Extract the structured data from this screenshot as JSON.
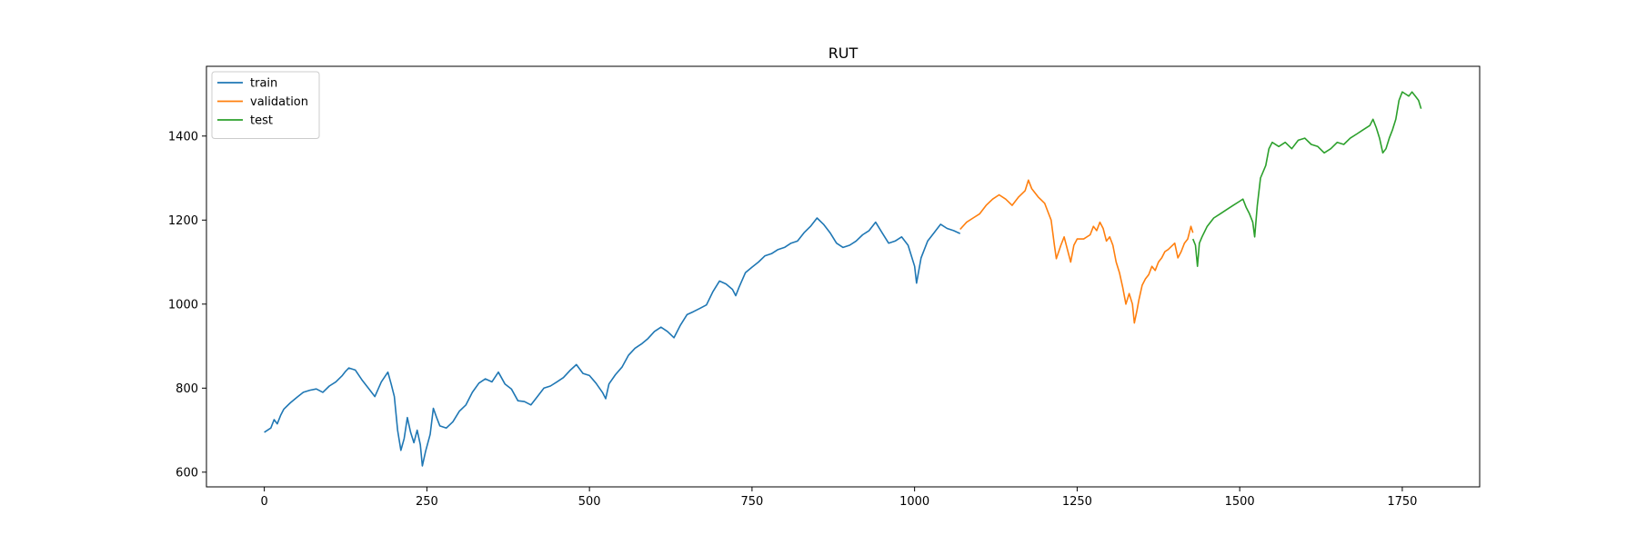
{
  "chart_data": {
    "type": "line",
    "title": "RUT",
    "xlabel": "",
    "ylabel": "",
    "xlim": [
      -89,
      1869
    ],
    "ylim": [
      565,
      1566
    ],
    "xticks": [
      0,
      250,
      500,
      750,
      1000,
      1250,
      1500,
      1750
    ],
    "yticks": [
      600,
      800,
      1000,
      1200,
      1400
    ],
    "grid": false,
    "legend": "top-left",
    "series": [
      {
        "name": "train",
        "color": "#1f77b4",
        "points": [
          [
            0,
            695
          ],
          [
            10,
            705
          ],
          [
            15,
            725
          ],
          [
            20,
            715
          ],
          [
            25,
            735
          ],
          [
            30,
            750
          ],
          [
            40,
            765
          ],
          [
            50,
            778
          ],
          [
            60,
            790
          ],
          [
            70,
            795
          ],
          [
            80,
            798
          ],
          [
            90,
            790
          ],
          [
            100,
            805
          ],
          [
            110,
            815
          ],
          [
            120,
            830
          ],
          [
            125,
            840
          ],
          [
            130,
            848
          ],
          [
            140,
            843
          ],
          [
            150,
            820
          ],
          [
            160,
            800
          ],
          [
            170,
            780
          ],
          [
            180,
            815
          ],
          [
            190,
            838
          ],
          [
            195,
            810
          ],
          [
            200,
            780
          ],
          [
            205,
            700
          ],
          [
            210,
            652
          ],
          [
            215,
            680
          ],
          [
            220,
            730
          ],
          [
            225,
            695
          ],
          [
            230,
            670
          ],
          [
            235,
            700
          ],
          [
            240,
            665
          ],
          [
            243,
            615
          ],
          [
            248,
            650
          ],
          [
            255,
            690
          ],
          [
            260,
            752
          ],
          [
            265,
            730
          ],
          [
            270,
            710
          ],
          [
            280,
            705
          ],
          [
            290,
            720
          ],
          [
            300,
            745
          ],
          [
            310,
            760
          ],
          [
            320,
            790
          ],
          [
            330,
            812
          ],
          [
            340,
            822
          ],
          [
            350,
            815
          ],
          [
            360,
            838
          ],
          [
            370,
            810
          ],
          [
            380,
            798
          ],
          [
            390,
            770
          ],
          [
            400,
            768
          ],
          [
            410,
            760
          ],
          [
            420,
            780
          ],
          [
            430,
            800
          ],
          [
            440,
            805
          ],
          [
            450,
            815
          ],
          [
            460,
            825
          ],
          [
            470,
            842
          ],
          [
            480,
            856
          ],
          [
            490,
            835
          ],
          [
            500,
            830
          ],
          [
            510,
            812
          ],
          [
            520,
            790
          ],
          [
            525,
            775
          ],
          [
            530,
            810
          ],
          [
            540,
            832
          ],
          [
            550,
            850
          ],
          [
            560,
            878
          ],
          [
            570,
            895
          ],
          [
            580,
            905
          ],
          [
            590,
            918
          ],
          [
            600,
            935
          ],
          [
            610,
            945
          ],
          [
            620,
            935
          ],
          [
            630,
            920
          ],
          [
            640,
            950
          ],
          [
            650,
            975
          ],
          [
            660,
            982
          ],
          [
            670,
            990
          ],
          [
            680,
            998
          ],
          [
            690,
            1030
          ],
          [
            700,
            1055
          ],
          [
            710,
            1048
          ],
          [
            720,
            1035
          ],
          [
            725,
            1020
          ],
          [
            730,
            1040
          ],
          [
            740,
            1075
          ],
          [
            750,
            1088
          ],
          [
            760,
            1100
          ],
          [
            770,
            1115
          ],
          [
            780,
            1120
          ],
          [
            790,
            1130
          ],
          [
            800,
            1135
          ],
          [
            810,
            1145
          ],
          [
            820,
            1150
          ],
          [
            830,
            1170
          ],
          [
            840,
            1185
          ],
          [
            850,
            1205
          ],
          [
            860,
            1190
          ],
          [
            870,
            1170
          ],
          [
            880,
            1145
          ],
          [
            890,
            1135
          ],
          [
            900,
            1140
          ],
          [
            910,
            1150
          ],
          [
            920,
            1165
          ],
          [
            930,
            1175
          ],
          [
            940,
            1195
          ],
          [
            950,
            1170
          ],
          [
            960,
            1145
          ],
          [
            970,
            1150
          ],
          [
            980,
            1160
          ],
          [
            990,
            1140
          ],
          [
            1000,
            1090
          ],
          [
            1003,
            1050
          ],
          [
            1010,
            1110
          ],
          [
            1020,
            1150
          ],
          [
            1030,
            1170
          ],
          [
            1040,
            1190
          ],
          [
            1050,
            1180
          ],
          [
            1060,
            1175
          ],
          [
            1070,
            1168
          ]
        ]
      },
      {
        "name": "validation",
        "color": "#ff7f0e",
        "points": [
          [
            1070,
            1178
          ],
          [
            1080,
            1195
          ],
          [
            1090,
            1205
          ],
          [
            1100,
            1215
          ],
          [
            1110,
            1235
          ],
          [
            1120,
            1250
          ],
          [
            1130,
            1260
          ],
          [
            1140,
            1250
          ],
          [
            1150,
            1235
          ],
          [
            1160,
            1255
          ],
          [
            1170,
            1270
          ],
          [
            1175,
            1295
          ],
          [
            1180,
            1275
          ],
          [
            1190,
            1255
          ],
          [
            1200,
            1240
          ],
          [
            1205,
            1220
          ],
          [
            1210,
            1200
          ],
          [
            1215,
            1140
          ],
          [
            1218,
            1108
          ],
          [
            1225,
            1140
          ],
          [
            1230,
            1160
          ],
          [
            1235,
            1130
          ],
          [
            1240,
            1100
          ],
          [
            1245,
            1140
          ],
          [
            1250,
            1155
          ],
          [
            1260,
            1155
          ],
          [
            1270,
            1165
          ],
          [
            1275,
            1185
          ],
          [
            1280,
            1175
          ],
          [
            1285,
            1195
          ],
          [
            1290,
            1180
          ],
          [
            1295,
            1150
          ],
          [
            1300,
            1160
          ],
          [
            1305,
            1140
          ],
          [
            1310,
            1100
          ],
          [
            1315,
            1075
          ],
          [
            1320,
            1040
          ],
          [
            1325,
            1000
          ],
          [
            1330,
            1025
          ],
          [
            1335,
            1000
          ],
          [
            1338,
            955
          ],
          [
            1342,
            985
          ],
          [
            1345,
            1010
          ],
          [
            1350,
            1045
          ],
          [
            1355,
            1060
          ],
          [
            1360,
            1070
          ],
          [
            1365,
            1090
          ],
          [
            1370,
            1080
          ],
          [
            1375,
            1100
          ],
          [
            1380,
            1110
          ],
          [
            1385,
            1125
          ],
          [
            1390,
            1130
          ],
          [
            1400,
            1145
          ],
          [
            1405,
            1110
          ],
          [
            1410,
            1125
          ],
          [
            1415,
            1145
          ],
          [
            1420,
            1155
          ],
          [
            1425,
            1185
          ],
          [
            1428,
            1170
          ]
        ]
      },
      {
        "name": "test",
        "color": "#2ca02c",
        "points": [
          [
            1428,
            1155
          ],
          [
            1432,
            1140
          ],
          [
            1435,
            1090
          ],
          [
            1438,
            1145
          ],
          [
            1442,
            1160
          ],
          [
            1450,
            1185
          ],
          [
            1460,
            1205
          ],
          [
            1470,
            1215
          ],
          [
            1480,
            1225
          ],
          [
            1490,
            1235
          ],
          [
            1500,
            1245
          ],
          [
            1505,
            1250
          ],
          [
            1510,
            1230
          ],
          [
            1515,
            1215
          ],
          [
            1520,
            1195
          ],
          [
            1523,
            1160
          ],
          [
            1527,
            1235
          ],
          [
            1532,
            1300
          ],
          [
            1540,
            1330
          ],
          [
            1545,
            1370
          ],
          [
            1550,
            1385
          ],
          [
            1560,
            1375
          ],
          [
            1570,
            1385
          ],
          [
            1580,
            1370
          ],
          [
            1590,
            1390
          ],
          [
            1600,
            1395
          ],
          [
            1610,
            1380
          ],
          [
            1620,
            1375
          ],
          [
            1630,
            1360
          ],
          [
            1640,
            1370
          ],
          [
            1650,
            1385
          ],
          [
            1660,
            1380
          ],
          [
            1670,
            1395
          ],
          [
            1680,
            1405
          ],
          [
            1690,
            1415
          ],
          [
            1700,
            1425
          ],
          [
            1705,
            1440
          ],
          [
            1710,
            1420
          ],
          [
            1715,
            1395
          ],
          [
            1720,
            1360
          ],
          [
            1725,
            1370
          ],
          [
            1730,
            1395
          ],
          [
            1735,
            1415
          ],
          [
            1740,
            1440
          ],
          [
            1745,
            1485
          ],
          [
            1750,
            1505
          ],
          [
            1755,
            1500
          ],
          [
            1760,
            1495
          ],
          [
            1765,
            1505
          ],
          [
            1770,
            1495
          ],
          [
            1775,
            1485
          ],
          [
            1779,
            1465
          ]
        ]
      }
    ]
  }
}
